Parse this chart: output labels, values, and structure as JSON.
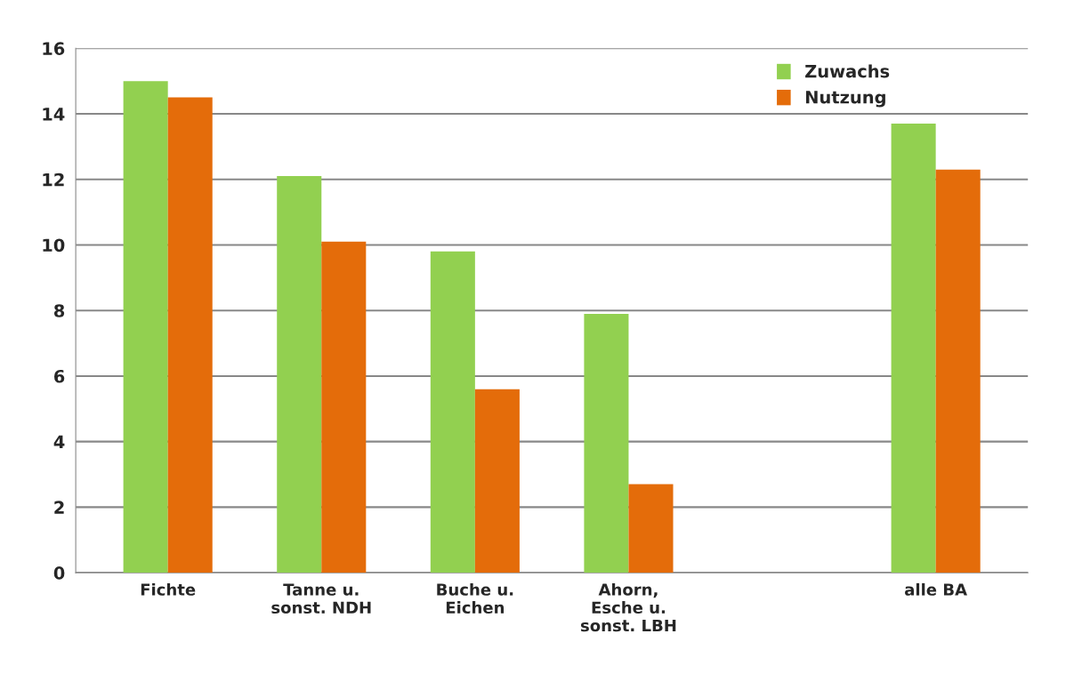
{
  "chart_data": {
    "type": "bar",
    "categories": [
      "Fichte",
      "Tanne u.\nsonst. NDH",
      "Buche u.\nEichen",
      "Ahorn,\nEsche u.\nsonst. LBH",
      null,
      "alle BA"
    ],
    "series": [
      {
        "name": "Zuwachs",
        "color": "#92d050",
        "values": [
          15.0,
          12.1,
          9.8,
          7.9,
          null,
          13.7
        ]
      },
      {
        "name": "Nutzung",
        "color": "#e46c0a",
        "values": [
          14.5,
          10.1,
          5.6,
          2.7,
          null,
          12.3
        ]
      }
    ],
    "ylim": [
      0,
      16
    ],
    "yticks": [
      0,
      2,
      4,
      6,
      8,
      10,
      12,
      14,
      16
    ],
    "grid": "y",
    "legend": "top right"
  }
}
